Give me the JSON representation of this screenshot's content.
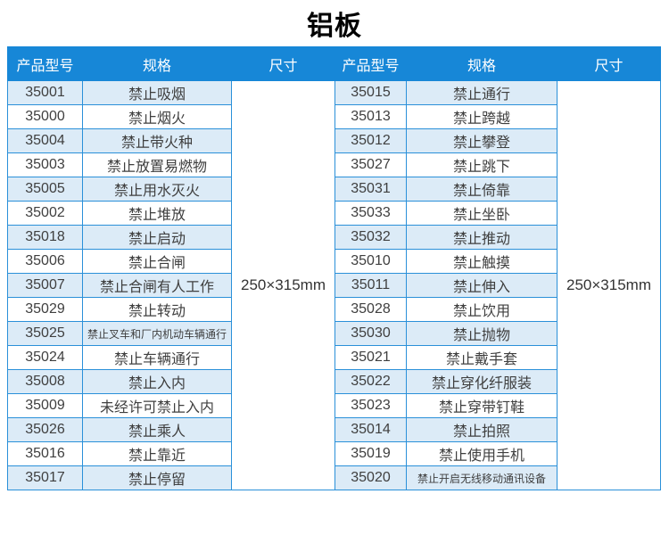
{
  "page": {
    "title": "铝板"
  },
  "colors": {
    "header_bg": "#1787d7",
    "grid_border": "#2a90d9",
    "row_stripe": "#dcebf7",
    "header_text": "#ffffff",
    "body_text": "#3f3f3f"
  },
  "table": {
    "headers": [
      "产品型号",
      "规格",
      "尺寸"
    ],
    "size_left": "250×315mm",
    "size_right": "250×315mm",
    "left_rows": [
      [
        "35001",
        "禁止吸烟"
      ],
      [
        "35000",
        "禁止烟火"
      ],
      [
        "35004",
        "禁止带火种"
      ],
      [
        "35003",
        "禁止放置易燃物"
      ],
      [
        "35005",
        "禁止用水灭火"
      ],
      [
        "35002",
        "禁止堆放"
      ],
      [
        "35018",
        "禁止启动"
      ],
      [
        "35006",
        "禁止合闸"
      ],
      [
        "35007",
        "禁止合闸有人工作"
      ],
      [
        "35029",
        "禁止转动"
      ],
      [
        "35025",
        "禁止叉车和厂内机动车辆通行"
      ],
      [
        "35024",
        "禁止车辆通行"
      ],
      [
        "35008",
        "禁止入内"
      ],
      [
        "35009",
        "未经许可禁止入内"
      ],
      [
        "35026",
        "禁止乘人"
      ],
      [
        "35016",
        "禁止靠近"
      ],
      [
        "35017",
        "禁止停留"
      ]
    ],
    "right_rows": [
      [
        "35015",
        "禁止通行"
      ],
      [
        "35013",
        "禁止跨越"
      ],
      [
        "35012",
        "禁止攀登"
      ],
      [
        "35027",
        "禁止跳下"
      ],
      [
        "35031",
        "禁止倚靠"
      ],
      [
        "35033",
        "禁止坐卧"
      ],
      [
        "35032",
        "禁止推动"
      ],
      [
        "35010",
        "禁止触摸"
      ],
      [
        "35011",
        "禁止伸入"
      ],
      [
        "35028",
        "禁止饮用"
      ],
      [
        "35030",
        "禁止抛物"
      ],
      [
        "35021",
        "禁止戴手套"
      ],
      [
        "35022",
        "禁止穿化纤服装"
      ],
      [
        "35023",
        "禁止穿带钉鞋"
      ],
      [
        "35014",
        "禁止拍照"
      ],
      [
        "35019",
        "禁止使用手机"
      ],
      [
        "35020",
        "禁止开启无线移动通讯设备"
      ]
    ]
  }
}
